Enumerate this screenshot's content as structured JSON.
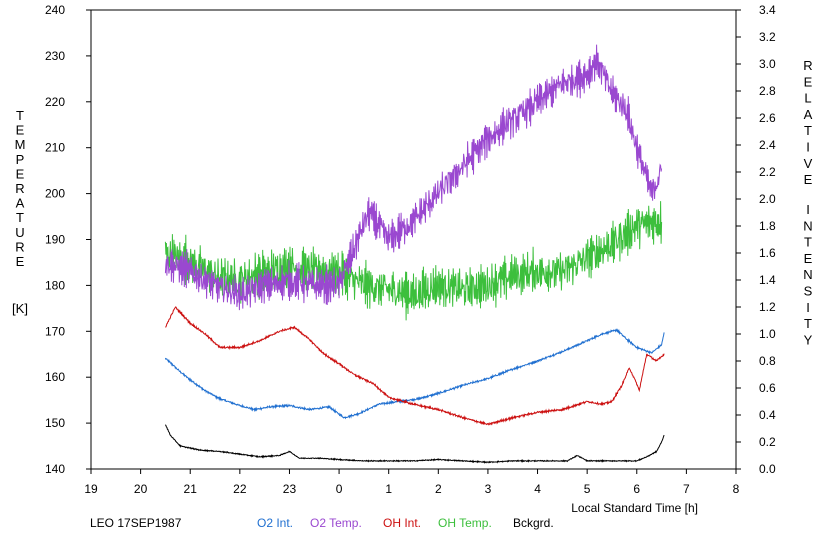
{
  "chart_data": {
    "type": "line",
    "footer_label": "LEO 17SEP1987",
    "xlabel": "Local Standard Time [h]",
    "ylabel_left_letters": [
      "T",
      "E",
      "M",
      "P",
      "E",
      "R",
      "A",
      "T",
      "U",
      "R",
      "E"
    ],
    "ylabel_left_unit": "[K]",
    "ylabel_right_word1": [
      "R",
      "E",
      "L",
      "A",
      "T",
      "I",
      "V",
      "E"
    ],
    "ylabel_right_word2": [
      "I",
      "N",
      "T",
      "E",
      "N",
      "S",
      "I",
      "T",
      "Y"
    ],
    "x_ticks": [
      {
        "pos": 19,
        "label": "19"
      },
      {
        "pos": 20,
        "label": "20"
      },
      {
        "pos": 21,
        "label": "21"
      },
      {
        "pos": 22,
        "label": "22"
      },
      {
        "pos": 23,
        "label": "23"
      },
      {
        "pos": 24,
        "label": "0"
      },
      {
        "pos": 25,
        "label": "1"
      },
      {
        "pos": 26,
        "label": "2"
      },
      {
        "pos": 27,
        "label": "3"
      },
      {
        "pos": 28,
        "label": "4"
      },
      {
        "pos": 29,
        "label": "5"
      },
      {
        "pos": 30,
        "label": "6"
      },
      {
        "pos": 31,
        "label": "7"
      },
      {
        "pos": 32,
        "label": "8"
      }
    ],
    "xlim": [
      19,
      32
    ],
    "ylim_left": [
      140,
      240
    ],
    "y_ticks_left": [
      "140",
      "150",
      "160",
      "170",
      "180",
      "190",
      "200",
      "210",
      "220",
      "230",
      "240"
    ],
    "ylim_right": [
      0.0,
      3.4
    ],
    "y_ticks_right": [
      "0.0",
      "0.2",
      "0.4",
      "0.6",
      "0.8",
      "1.0",
      "1.2",
      "1.4",
      "1.6",
      "1.8",
      "2.0",
      "2.2",
      "2.4",
      "2.6",
      "2.8",
      "3.0",
      "3.2",
      "3.4"
    ],
    "series": [
      {
        "name": "O2 Int.",
        "axis": "right",
        "color": "#1f6fd0",
        "noise": 0.012,
        "x": [
          20.5,
          20.8,
          21.0,
          21.3,
          21.6,
          22.0,
          22.3,
          22.6,
          23.0,
          23.4,
          23.8,
          24.1,
          24.4,
          24.8,
          25.2,
          25.6,
          26.0,
          26.5,
          27.0,
          27.5,
          28.0,
          28.5,
          29.0,
          29.3,
          29.6,
          29.8,
          30.0,
          30.3,
          30.5,
          30.55
        ],
        "y": [
          0.82,
          0.72,
          0.66,
          0.58,
          0.52,
          0.47,
          0.44,
          0.46,
          0.47,
          0.44,
          0.46,
          0.38,
          0.41,
          0.48,
          0.5,
          0.52,
          0.56,
          0.62,
          0.67,
          0.74,
          0.8,
          0.87,
          0.95,
          1.0,
          1.03,
          0.96,
          0.9,
          0.86,
          0.92,
          1.01
        ]
      },
      {
        "name": "O2 Temp.",
        "axis": "left",
        "color": "#9a48d0",
        "noise": 5.5,
        "x": [
          20.5,
          21.0,
          21.5,
          22.0,
          22.5,
          23.0,
          23.5,
          24.0,
          24.3,
          24.6,
          25.0,
          25.5,
          26.0,
          26.5,
          27.0,
          27.5,
          28.0,
          28.5,
          29.0,
          29.2,
          29.5,
          29.8,
          30.0,
          30.3,
          30.5
        ],
        "y": [
          185,
          183,
          180,
          178,
          180,
          181,
          180,
          180,
          188,
          196,
          190,
          194,
          200,
          206,
          212,
          216,
          220,
          224,
          226,
          229,
          222,
          218,
          210,
          200,
          205
        ]
      },
      {
        "name": "OH Int.",
        "axis": "right",
        "color": "#cc1010",
        "noise": 0.012,
        "x": [
          20.5,
          20.7,
          21.0,
          21.3,
          21.6,
          22.0,
          22.4,
          22.8,
          23.1,
          23.4,
          23.7,
          24.0,
          24.3,
          24.7,
          25.0,
          25.5,
          26.0,
          26.5,
          27.0,
          27.5,
          28.0,
          28.5,
          29.0,
          29.3,
          29.5,
          29.7,
          29.85,
          30.0,
          30.05,
          30.2,
          30.4,
          30.55
        ],
        "y": [
          1.05,
          1.2,
          1.08,
          1.0,
          0.9,
          0.9,
          0.95,
          1.02,
          1.05,
          0.96,
          0.85,
          0.78,
          0.7,
          0.63,
          0.53,
          0.48,
          0.44,
          0.38,
          0.33,
          0.38,
          0.42,
          0.44,
          0.5,
          0.48,
          0.5,
          0.62,
          0.75,
          0.63,
          0.58,
          0.85,
          0.8,
          0.85
        ]
      },
      {
        "name": "OH Temp.",
        "axis": "left",
        "color": "#3cbf3c",
        "noise": 7.0,
        "x": [
          20.5,
          21.0,
          21.5,
          22.0,
          22.5,
          23.0,
          23.5,
          24.0,
          24.5,
          25.0,
          25.5,
          26.0,
          26.5,
          27.0,
          27.5,
          28.0,
          28.5,
          29.0,
          29.5,
          30.0,
          30.5
        ],
        "y": [
          187,
          185,
          182,
          181,
          183,
          184,
          183,
          183,
          180,
          179,
          178,
          180,
          179,
          180,
          182,
          183,
          183,
          186,
          189,
          193,
          194
        ]
      },
      {
        "name": "Bckgrd.",
        "axis": "right",
        "color": "#000000",
        "noise": 0.006,
        "x": [
          20.5,
          20.6,
          20.8,
          21.2,
          21.6,
          22.0,
          22.4,
          22.8,
          23.0,
          23.2,
          23.6,
          24.0,
          24.5,
          25.0,
          25.5,
          26.0,
          26.5,
          27.0,
          27.5,
          28.0,
          28.3,
          28.6,
          28.8,
          29.0,
          29.5,
          30.0,
          30.2,
          30.4,
          30.5,
          30.55
        ],
        "y": [
          0.33,
          0.25,
          0.17,
          0.14,
          0.13,
          0.11,
          0.09,
          0.1,
          0.13,
          0.08,
          0.08,
          0.07,
          0.06,
          0.06,
          0.06,
          0.07,
          0.06,
          0.05,
          0.06,
          0.06,
          0.06,
          0.06,
          0.1,
          0.06,
          0.06,
          0.06,
          0.09,
          0.13,
          0.2,
          0.25
        ]
      }
    ]
  }
}
